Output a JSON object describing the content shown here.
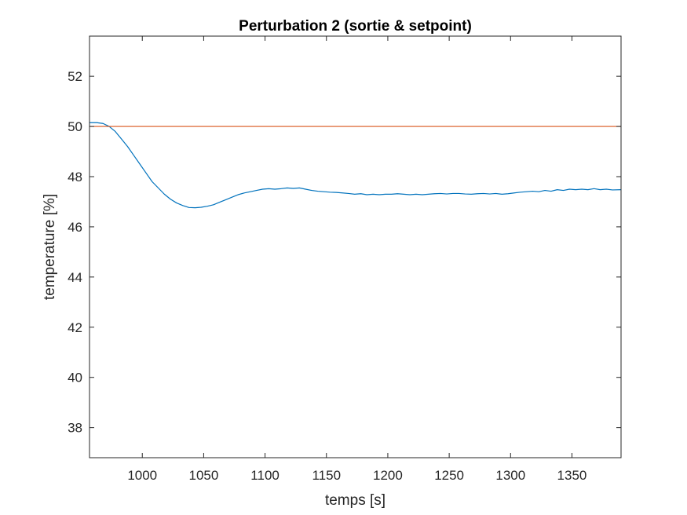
{
  "chart_data": {
    "type": "line",
    "title": "Perturbation 2 (sortie & setpoint)",
    "xlabel": "temps [s]",
    "ylabel": "temperature [%]",
    "xlim": [
      957,
      1390
    ],
    "ylim": [
      36.8,
      53.6
    ],
    "x_ticks": [
      1000,
      1050,
      1100,
      1150,
      1200,
      1250,
      1300,
      1350
    ],
    "y_ticks": [
      38,
      40,
      42,
      44,
      46,
      48,
      50,
      52
    ],
    "grid": false,
    "legend": "none",
    "series": [
      {
        "color": "#0072BD",
        "points": [
          [
            957,
            50.15
          ],
          [
            963,
            50.15
          ],
          [
            968,
            50.12
          ],
          [
            973,
            50.0
          ],
          [
            978,
            49.8
          ],
          [
            983,
            49.5
          ],
          [
            988,
            49.2
          ],
          [
            993,
            48.85
          ],
          [
            998,
            48.5
          ],
          [
            1003,
            48.15
          ],
          [
            1008,
            47.8
          ],
          [
            1013,
            47.55
          ],
          [
            1018,
            47.3
          ],
          [
            1023,
            47.1
          ],
          [
            1028,
            46.95
          ],
          [
            1033,
            46.85
          ],
          [
            1038,
            46.77
          ],
          [
            1043,
            46.76
          ],
          [
            1048,
            46.78
          ],
          [
            1053,
            46.82
          ],
          [
            1058,
            46.88
          ],
          [
            1063,
            46.98
          ],
          [
            1068,
            47.08
          ],
          [
            1073,
            47.18
          ],
          [
            1078,
            47.28
          ],
          [
            1083,
            47.35
          ],
          [
            1088,
            47.4
          ],
          [
            1093,
            47.45
          ],
          [
            1098,
            47.5
          ],
          [
            1103,
            47.52
          ],
          [
            1108,
            47.5
          ],
          [
            1113,
            47.52
          ],
          [
            1118,
            47.55
          ],
          [
            1123,
            47.53
          ],
          [
            1128,
            47.55
          ],
          [
            1133,
            47.5
          ],
          [
            1138,
            47.45
          ],
          [
            1143,
            47.42
          ],
          [
            1148,
            47.4
          ],
          [
            1153,
            47.38
          ],
          [
            1158,
            47.37
          ],
          [
            1163,
            47.35
          ],
          [
            1168,
            47.33
          ],
          [
            1173,
            47.3
          ],
          [
            1178,
            47.32
          ],
          [
            1183,
            47.28
          ],
          [
            1188,
            47.3
          ],
          [
            1193,
            47.28
          ],
          [
            1198,
            47.3
          ],
          [
            1203,
            47.3
          ],
          [
            1208,
            47.32
          ],
          [
            1213,
            47.3
          ],
          [
            1218,
            47.28
          ],
          [
            1223,
            47.3
          ],
          [
            1228,
            47.28
          ],
          [
            1233,
            47.3
          ],
          [
            1238,
            47.32
          ],
          [
            1243,
            47.33
          ],
          [
            1248,
            47.31
          ],
          [
            1253,
            47.33
          ],
          [
            1258,
            47.33
          ],
          [
            1263,
            47.31
          ],
          [
            1268,
            47.3
          ],
          [
            1273,
            47.32
          ],
          [
            1278,
            47.33
          ],
          [
            1283,
            47.31
          ],
          [
            1288,
            47.33
          ],
          [
            1293,
            47.3
          ],
          [
            1298,
            47.32
          ],
          [
            1303,
            47.35
          ],
          [
            1308,
            47.38
          ],
          [
            1313,
            47.4
          ],
          [
            1318,
            47.42
          ],
          [
            1323,
            47.4
          ],
          [
            1328,
            47.45
          ],
          [
            1333,
            47.42
          ],
          [
            1338,
            47.48
          ],
          [
            1343,
            47.45
          ],
          [
            1348,
            47.5
          ],
          [
            1353,
            47.48
          ],
          [
            1358,
            47.5
          ],
          [
            1363,
            47.48
          ],
          [
            1368,
            47.52
          ],
          [
            1373,
            47.48
          ],
          [
            1378,
            47.5
          ],
          [
            1383,
            47.47
          ],
          [
            1390,
            47.48
          ]
        ]
      },
      {
        "color": "#D95319",
        "points": [
          [
            957,
            50.0
          ],
          [
            1390,
            50.0
          ]
        ]
      }
    ]
  }
}
